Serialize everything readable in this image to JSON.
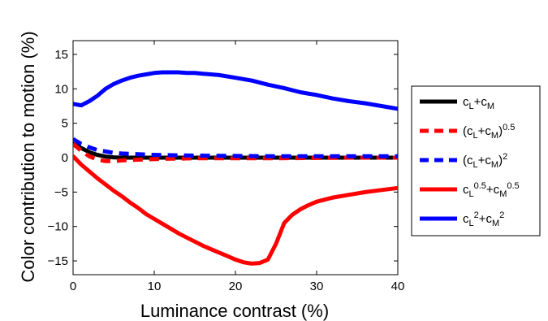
{
  "chart_data": {
    "type": "line",
    "title": "",
    "xlabel": "Luminance contrast (%)",
    "ylabel": "Color contribution to motion (%)",
    "xlim": [
      0,
      40
    ],
    "ylim": [
      -17,
      17
    ],
    "xticks": [
      "0",
      "10",
      "20",
      "30",
      "40"
    ],
    "yticks": [
      "15",
      "10",
      "5",
      "0",
      "−5",
      "−10",
      "−15"
    ],
    "grid": false,
    "legend_position": "right, outside plot",
    "series": [
      {
        "name": "cL+cM",
        "color": "#000000",
        "style": "solid",
        "x": [
          0,
          1,
          2,
          3,
          4,
          5,
          6,
          8,
          10,
          12,
          15,
          20,
          25,
          30,
          35,
          40
        ],
        "y": [
          2.0,
          1.4,
          0.8,
          0.4,
          0.15,
          0.05,
          0.0,
          0.0,
          0.0,
          0.0,
          0.0,
          0.0,
          0.0,
          0.0,
          0.0,
          0.0
        ]
      },
      {
        "name": "(cL+cM)^0.5",
        "color": "#ff0000",
        "style": "dashed",
        "x": [
          0,
          1,
          2,
          3,
          4,
          5,
          6,
          8,
          10,
          12,
          15,
          20,
          25,
          30,
          35,
          40
        ],
        "y": [
          2.0,
          1.0,
          0.2,
          -0.3,
          -0.5,
          -0.5,
          -0.4,
          -0.3,
          -0.2,
          -0.15,
          -0.1,
          -0.1,
          -0.1,
          -0.05,
          0.0,
          0.0
        ]
      },
      {
        "name": "(cL+cM)^2",
        "color": "#0000ff",
        "style": "dashed",
        "x": [
          0,
          1,
          2,
          3,
          4,
          5,
          6,
          8,
          10,
          12,
          15,
          20,
          25,
          30,
          35,
          40
        ],
        "y": [
          2.7,
          2.0,
          1.5,
          1.1,
          0.9,
          0.7,
          0.6,
          0.5,
          0.4,
          0.35,
          0.3,
          0.25,
          0.2,
          0.2,
          0.2,
          0.2
        ]
      },
      {
        "name": "cL^0.5+cM^0.5",
        "color": "#ff0000",
        "style": "solid",
        "x": [
          0,
          1,
          2,
          3,
          4,
          5,
          6,
          7,
          8,
          9,
          10,
          11,
          12,
          13,
          14,
          15,
          16,
          17,
          18,
          19,
          20,
          21,
          22,
          23,
          24,
          25,
          26,
          27,
          28,
          29,
          30,
          32,
          34,
          36,
          38,
          40
        ],
        "y": [
          0.2,
          -1.0,
          -2.0,
          -3.0,
          -3.9,
          -4.8,
          -5.6,
          -6.5,
          -7.3,
          -8.2,
          -8.9,
          -9.6,
          -10.3,
          -11.0,
          -11.6,
          -12.2,
          -12.8,
          -13.3,
          -13.8,
          -14.3,
          -14.8,
          -15.2,
          -15.4,
          -15.3,
          -14.8,
          -12.5,
          -9.5,
          -8.3,
          -7.5,
          -6.9,
          -6.4,
          -5.8,
          -5.4,
          -5.0,
          -4.7,
          -4.4
        ]
      },
      {
        "name": "cL^2+cM^2",
        "color": "#0000ff",
        "style": "solid",
        "x": [
          0,
          1,
          2,
          3,
          4,
          5,
          6,
          7,
          8,
          9,
          10,
          11,
          12,
          13,
          14,
          15,
          16,
          18,
          20,
          22,
          24,
          26,
          28,
          30,
          32,
          34,
          36,
          38,
          40
        ],
        "y": [
          7.8,
          7.6,
          8.2,
          9.0,
          10.0,
          10.7,
          11.2,
          11.6,
          11.9,
          12.1,
          12.3,
          12.4,
          12.4,
          12.4,
          12.3,
          12.3,
          12.2,
          12.0,
          11.6,
          11.2,
          10.6,
          10.1,
          9.5,
          9.1,
          8.6,
          8.2,
          7.9,
          7.5,
          7.1
        ]
      }
    ]
  },
  "legend": [
    {
      "base": "c",
      "parts": [
        [
          "c",
          ""
        ],
        [
          "L",
          "sub"
        ],
        [
          "+c",
          ""
        ],
        [
          "M",
          "sub"
        ]
      ],
      "color": "#000000",
      "style": "solid"
    },
    {
      "parts": [
        [
          "(c",
          ""
        ],
        [
          "L",
          "sub"
        ],
        [
          "+c",
          ""
        ],
        [
          "M",
          "sub"
        ],
        [
          ")",
          ""
        ],
        [
          "0.5",
          "sup"
        ]
      ],
      "color": "#ff0000",
      "style": "dashed"
    },
    {
      "parts": [
        [
          "(c",
          ""
        ],
        [
          "L",
          "sub"
        ],
        [
          "+c",
          ""
        ],
        [
          "M",
          "sub"
        ],
        [
          ")",
          ""
        ],
        [
          "2",
          "sup"
        ]
      ],
      "color": "#0000ff",
      "style": "dashed"
    },
    {
      "parts": [
        [
          "c",
          ""
        ],
        [
          "L",
          "sub"
        ],
        [
          "0.5",
          "sup"
        ],
        [
          "+c",
          ""
        ],
        [
          "M",
          "sub"
        ],
        [
          "0.5",
          "sup"
        ]
      ],
      "color": "#ff0000",
      "style": "solid"
    },
    {
      "parts": [
        [
          "c",
          ""
        ],
        [
          "L",
          "sub"
        ],
        [
          "2",
          "sup"
        ],
        [
          "+c",
          ""
        ],
        [
          "M",
          "sub"
        ],
        [
          "2",
          "sup"
        ]
      ],
      "color": "#0000ff",
      "style": "solid"
    }
  ]
}
